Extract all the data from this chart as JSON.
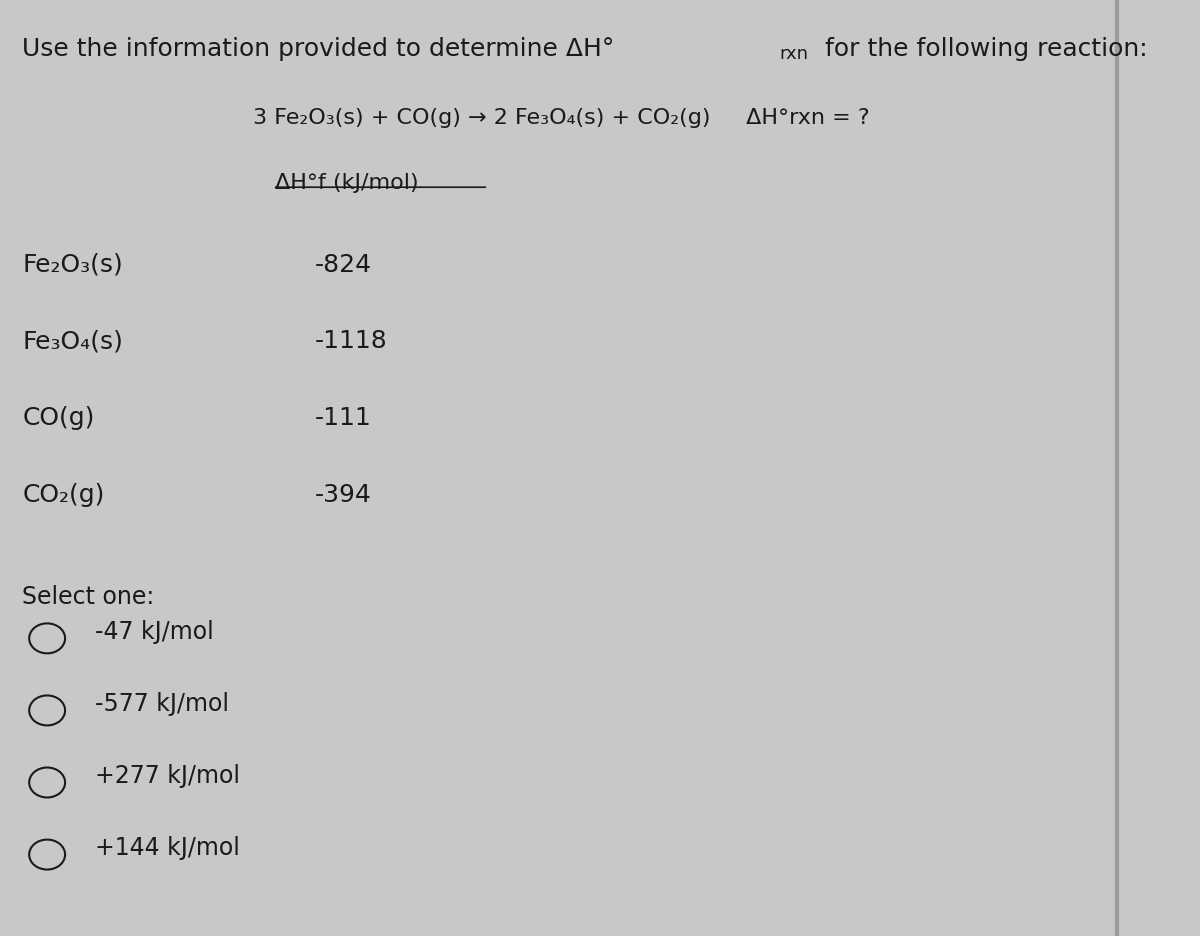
{
  "background_color": "#c8c8c8",
  "text_color": "#1a1a1a",
  "font_size_title": 18,
  "font_size_reaction": 16,
  "font_size_header": 16,
  "font_size_compound": 18,
  "font_size_select": 17,
  "font_size_option": 17,
  "compounds": [
    "Fe₂O₃(s)",
    "Fe₃O₄(s)",
    "CO(g)",
    "CO₂(g)"
  ],
  "values": [
    "-824",
    "-1118",
    "-111",
    "-394"
  ],
  "select_label": "Select one:",
  "options": [
    "-47 kJ/mol",
    "-577 kJ/mol",
    "+277 kJ/mol",
    "+144 kJ/mol"
  ]
}
